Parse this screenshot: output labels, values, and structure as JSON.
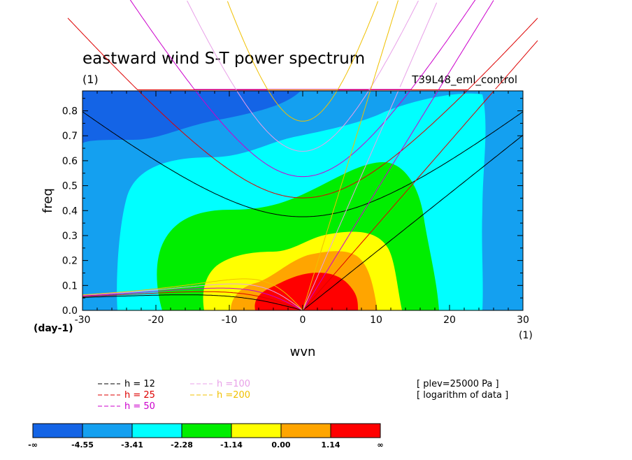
{
  "chart_data": {
    "type": "heatmap",
    "title": "eastward wind S-T power spectrum",
    "subtitle_left": "(1)",
    "subtitle_right": "T39L48_eml_control",
    "xlabel": "wvn",
    "ylabel": "freq",
    "x_unit": "(1)",
    "y_unit": "(day-1)",
    "xlim": [
      -30,
      30
    ],
    "ylim": [
      0,
      0.88
    ],
    "xticks": [
      -30,
      -20,
      -10,
      0,
      10,
      20,
      30
    ],
    "xtick_labels": [
      "-30",
      "-20",
      "-10",
      "0",
      "10",
      "20",
      "30"
    ],
    "yticks": [
      0,
      0.1,
      0.2,
      0.3,
      0.4,
      0.5,
      0.6,
      0.7,
      0.8
    ],
    "ytick_labels": [
      "0.0",
      "0.1",
      "0.2",
      "0.3",
      "0.4",
      "0.5",
      "0.6",
      "0.7",
      "0.8"
    ],
    "contour_levels": [
      -4.55,
      -3.41,
      -2.28,
      -1.14,
      0.0,
      1.14
    ],
    "colorbar": {
      "labels": [
        "-∞",
        "-4.55",
        "-3.41",
        "-2.28",
        "-1.14",
        "0.00",
        "1.14",
        "∞"
      ],
      "colors": [
        "#1464e6",
        "#14a0f0",
        "#00ffff",
        "#00ee00",
        "#ffff00",
        "#ffa500",
        "#ff0000"
      ]
    },
    "dispersion_curves": {
      "equivalent_depths_m": [
        12,
        25,
        50,
        100,
        200
      ],
      "colors": [
        "#000000",
        "#dd0000",
        "#cc00cc",
        "#e8a0e8",
        "#f0c000"
      ],
      "legend_labels": [
        "h = 12",
        "h = 25",
        "h = 50",
        "h =100",
        "h =200"
      ]
    },
    "notes": [
      "[ plev=25000 Pa ]",
      "[ logarithm of data ]"
    ],
    "grid": false
  }
}
